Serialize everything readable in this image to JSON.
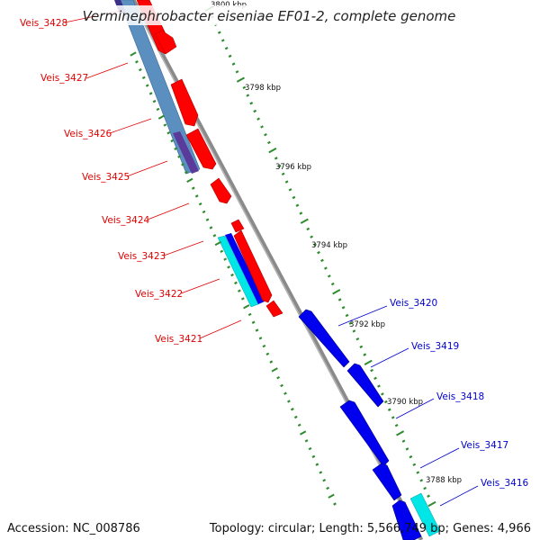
{
  "title": "Verminephrobacter eiseniae EF01-2, complete genome",
  "footer": {
    "accession": "Accession: NC_008786",
    "summary": "Topology: circular; Length: 5,566,749 bp; Genes: 4,966"
  },
  "colors": {
    "backbone": "#8a8a8a",
    "forward_cds": "#ff0000",
    "reverse_cds": "#0000ff",
    "rna": "#00e5e5",
    "blast_steel": "#5b8fc0",
    "blast_purple": "#5a3a9a",
    "tick": "#2e8b2e",
    "label_left": "#e00000",
    "label_right": "#0000cc"
  },
  "kbp_labels": [
    "3800 kbp",
    "3798 kbp",
    "3796 kbp",
    "3794 kbp",
    "3792 kbp",
    "3790 kbp",
    "3788 kbp"
  ],
  "left_genes": [
    "Veis_3428",
    "Veis_3427",
    "Veis_3426",
    "Veis_3425",
    "Veis_3424",
    "Veis_3423",
    "Veis_3422",
    "Veis_3421"
  ],
  "right_genes": [
    "Veis_3420",
    "Veis_3419",
    "Veis_3418",
    "Veis_3417",
    "Veis_3416"
  ]
}
